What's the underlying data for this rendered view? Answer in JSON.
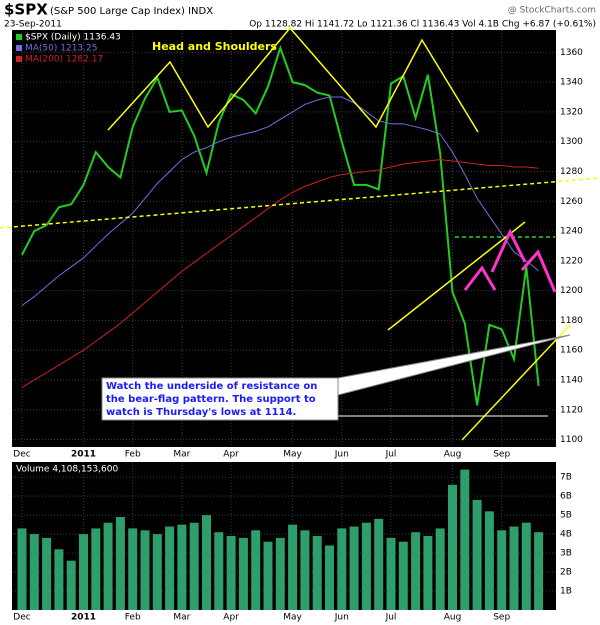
{
  "header": {
    "symbol": "$SPX",
    "name": "(S&P 500 Large Cap Index) INDX",
    "date": "23-Sep-2011",
    "quote": "Op 1128.82 Hi 1141.72 Lo 1121.36 Cl 1136.43 Vol 4.1B Chg +6.87 (+0.61%)",
    "source": "@ StockCharts.com"
  },
  "chart_data": [
    {
      "type": "line",
      "annotations": [
        "Head and Shoulders",
        "Watch the underside of resistance on",
        "the bear-flag pattern. The support to",
        "watch is Thursday's lows at 1114."
      ],
      "categories": [
        "Dec",
        null,
        null,
        null,
        null,
        "2011",
        null,
        null,
        null,
        "Feb",
        null,
        null,
        null,
        "Mar",
        null,
        null,
        null,
        "Apr",
        null,
        null,
        null,
        null,
        "May",
        null,
        null,
        null,
        "Jun",
        null,
        null,
        null,
        "Jul",
        null,
        null,
        null,
        null,
        "Aug",
        null,
        null,
        null,
        "Sep",
        null,
        null,
        null
      ],
      "series": [
        {
          "name": "$SPX (Daily) 1136.43",
          "color": "#22cc22",
          "values": [
            1224,
            1240,
            1244,
            1256,
            1258,
            1271,
            1293,
            1283,
            1276,
            1310,
            1329,
            1343,
            1320,
            1321,
            1304,
            1279,
            1313,
            1332,
            1328,
            1319,
            1337,
            1363,
            1340,
            1338,
            1333,
            1331,
            1300,
            1271,
            1271,
            1268,
            1339,
            1344,
            1316,
            1345,
            1292,
            1199,
            1178,
            1123,
            1177,
            1174,
            1154,
            1216,
            1136
          ]
        },
        {
          "name": "MA(50) 1213.25",
          "color": "#6f6fe0",
          "values": [
            1190,
            1196,
            1203,
            1210,
            1216,
            1222,
            1230,
            1238,
            1245,
            1252,
            1262,
            1272,
            1280,
            1288,
            1293,
            1296,
            1300,
            1303,
            1305,
            1307,
            1310,
            1315,
            1320,
            1325,
            1328,
            1330,
            1330,
            1326,
            1320,
            1314,
            1312,
            1312,
            1310,
            1308,
            1305,
            1293,
            1278,
            1262,
            1250,
            1238,
            1226,
            1220,
            1213.25
          ]
        },
        {
          "name": "MA(200) 1282.17",
          "color": "#d02020",
          "values": [
            1135,
            1140,
            1145,
            1150,
            1155,
            1160,
            1166,
            1172,
            1178,
            1185,
            1192,
            1199,
            1206,
            1213,
            1219,
            1225,
            1231,
            1237,
            1243,
            1249,
            1255,
            1261,
            1266,
            1270,
            1273,
            1276,
            1278,
            1279,
            1280,
            1281,
            1283,
            1285,
            1286,
            1287,
            1288,
            1287,
            1286,
            1285,
            1284,
            1284,
            1283,
            1283,
            1282.17
          ]
        }
      ],
      "ylim": [
        1095,
        1375
      ],
      "yticks": [
        1100,
        1120,
        1140,
        1160,
        1180,
        1200,
        1220,
        1240,
        1260,
        1280,
        1300,
        1320,
        1340,
        1360
      ],
      "grid": true
    },
    {
      "type": "bar",
      "series": [
        {
          "name": "Volume 4,108,153,600",
          "color": "#2e9e6a",
          "values": [
            4.3,
            4.0,
            3.8,
            3.2,
            2.6,
            4.0,
            4.3,
            4.6,
            4.9,
            4.3,
            4.2,
            4.0,
            4.4,
            4.5,
            4.6,
            5.0,
            4.1,
            3.9,
            3.8,
            4.2,
            3.6,
            3.8,
            4.5,
            4.2,
            3.9,
            3.4,
            4.3,
            4.4,
            4.6,
            4.8,
            3.8,
            3.6,
            4.1,
            3.9,
            4.3,
            6.6,
            7.4,
            5.8,
            5.2,
            4.2,
            4.4,
            4.6,
            4.1
          ]
        }
      ],
      "ylim": [
        0,
        7.8
      ],
      "yticks": [
        {
          "value": 1,
          "label": "1B"
        },
        {
          "value": 2,
          "label": "2B"
        },
        {
          "value": 3,
          "label": "3B"
        },
        {
          "value": 4,
          "label": "4B"
        },
        {
          "value": 5,
          "label": "5B"
        },
        {
          "value": 6,
          "label": "6B"
        },
        {
          "value": 7,
          "label": "7B"
        }
      ],
      "grid": true
    }
  ]
}
